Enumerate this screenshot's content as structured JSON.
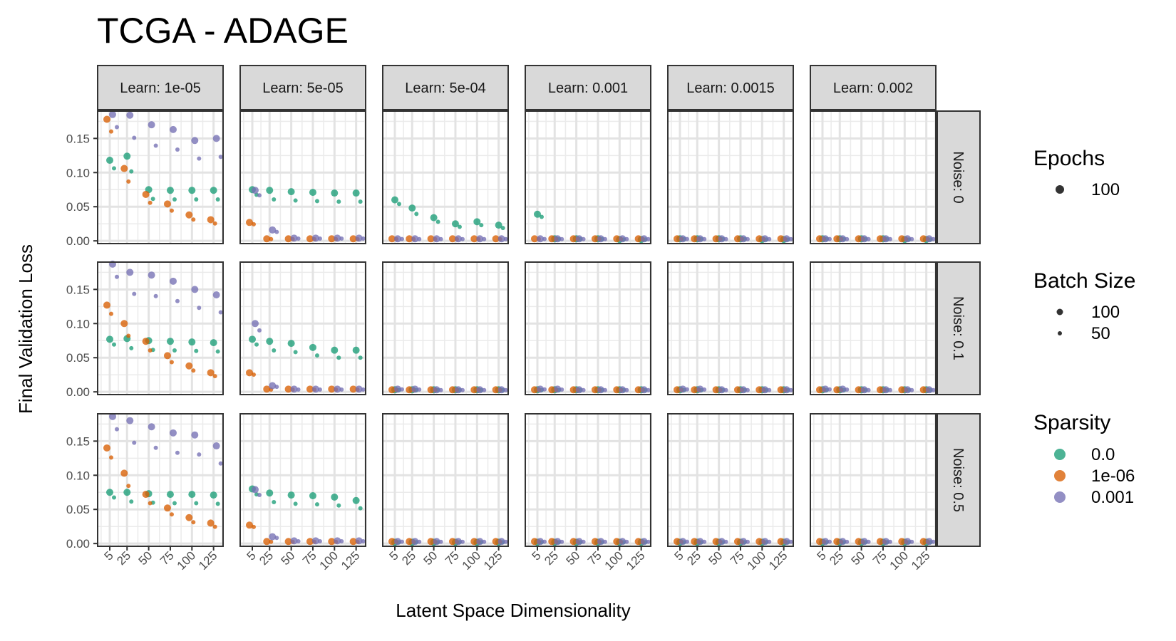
{
  "chart_data": {
    "type": "scatter",
    "title": "TCGA - ADAGE",
    "xlabel": "Latent Space Dimensionality",
    "ylabel": "Final Validation Loss",
    "x_ticks": [
      5,
      25,
      50,
      75,
      100,
      125
    ],
    "y_ticks": [
      "0.00",
      "0.05",
      "0.10",
      "0.15"
    ],
    "ylim": [
      -0.004,
      0.19
    ],
    "grid": true,
    "facet_cols": [
      "Learn: 1e-05",
      "Learn: 5e-05",
      "Learn: 5e-04",
      "Learn: 0.001",
      "Learn: 0.0015",
      "Learn: 0.002"
    ],
    "facet_rows": [
      "Noise: 0",
      "Noise: 0.1",
      "Noise: 0.5"
    ],
    "legend": {
      "placement": "right",
      "epochs": {
        "title": "Epochs",
        "items": [
          "100"
        ]
      },
      "batch_size": {
        "title": "Batch Size",
        "items": [
          "100",
          "50"
        ]
      },
      "sparsity": {
        "title": "Sparsity",
        "items": [
          {
            "label": "0.0",
            "color": "#1b9e77"
          },
          {
            "label": "1e-06",
            "color": "#d95f02"
          },
          {
            "label": "0.001",
            "color": "#7570b3"
          }
        ]
      }
    },
    "series": [
      {
        "name": "0.0",
        "values": [
          [
            [
              0.118,
              0.124,
              0.075,
              0.074,
              0.074,
              0.074
            ],
            [
              0.077,
              0.078,
              0.075,
              0.074,
              0.073,
              0.072
            ],
            [
              0.075,
              0.075,
              0.073,
              0.072,
              0.072,
              0.071
            ]
          ],
          [
            [
              0.075,
              0.074,
              0.072,
              0.071,
              0.07,
              0.07
            ],
            [
              0.077,
              0.074,
              0.071,
              0.065,
              0.061,
              0.061
            ],
            [
              0.08,
              0.074,
              0.071,
              0.07,
              0.068,
              0.063
            ]
          ],
          [
            [
              0.06,
              0.048,
              0.034,
              0.025,
              0.028,
              0.023
            ],
            [
              0.003,
              0.003,
              0.003,
              0.003,
              0.003,
              0.003
            ],
            [
              0.002,
              0.002,
              0.002,
              0.002,
              0.002,
              0.002
            ]
          ],
          [
            [
              0.039,
              0.003,
              0.003,
              0.003,
              0.002,
              0.002
            ],
            [
              0.003,
              0.003,
              0.003,
              0.003,
              0.003,
              0.003
            ],
            [
              0.002,
              0.002,
              0.002,
              0.002,
              0.002,
              0.002
            ]
          ],
          [
            [
              0.003,
              0.003,
              0.003,
              0.003,
              0.002,
              0.002
            ],
            [
              0.003,
              0.003,
              0.003,
              0.003,
              0.003,
              0.003
            ],
            [
              0.002,
              0.002,
              0.002,
              0.002,
              0.002,
              0.002
            ]
          ],
          [
            [
              0.003,
              0.003,
              0.003,
              0.003,
              0.002,
              0.002
            ],
            [
              0.003,
              0.003,
              0.003,
              0.003,
              0.003,
              0.003
            ],
            [
              0.002,
              0.002,
              0.002,
              0.002,
              0.002,
              0.002
            ]
          ]
        ]
      },
      {
        "name": "1e-06",
        "values": [
          [
            [
              0.178,
              0.106,
              0.068,
              0.054,
              0.038,
              0.031
            ],
            [
              0.127,
              0.1,
              0.074,
              0.053,
              0.038,
              0.028
            ],
            [
              0.14,
              0.103,
              0.072,
              0.052,
              0.038,
              0.03
            ]
          ],
          [
            [
              0.027,
              0.003,
              0.003,
              0.003,
              0.003,
              0.003
            ],
            [
              0.028,
              0.004,
              0.004,
              0.004,
              0.004,
              0.004
            ],
            [
              0.027,
              0.003,
              0.003,
              0.003,
              0.003,
              0.003
            ]
          ],
          [
            [
              0.003,
              0.003,
              0.003,
              0.003,
              0.003,
              0.003
            ],
            [
              0.003,
              0.003,
              0.003,
              0.003,
              0.003,
              0.003
            ],
            [
              0.003,
              0.003,
              0.003,
              0.003,
              0.003,
              0.003
            ]
          ],
          [
            [
              0.003,
              0.003,
              0.003,
              0.003,
              0.003,
              0.003
            ],
            [
              0.003,
              0.003,
              0.003,
              0.003,
              0.003,
              0.003
            ],
            [
              0.003,
              0.003,
              0.003,
              0.003,
              0.003,
              0.003
            ]
          ],
          [
            [
              0.003,
              0.003,
              0.003,
              0.003,
              0.003,
              0.003
            ],
            [
              0.003,
              0.003,
              0.003,
              0.003,
              0.003,
              0.003
            ],
            [
              0.003,
              0.003,
              0.003,
              0.003,
              0.003,
              0.003
            ]
          ],
          [
            [
              0.003,
              0.003,
              0.003,
              0.003,
              0.003,
              0.003
            ],
            [
              0.003,
              0.003,
              0.003,
              0.003,
              0.003,
              0.003
            ],
            [
              0.003,
              0.003,
              0.003,
              0.003,
              0.003,
              0.003
            ]
          ]
        ]
      },
      {
        "name": "0.001",
        "values": [
          [
            [
              0.185,
              0.184,
              0.17,
              0.163,
              0.147,
              0.15
            ],
            [
              0.187,
              0.175,
              0.171,
              0.162,
              0.15,
              0.142
            ],
            [
              0.186,
              0.18,
              0.171,
              0.162,
              0.159,
              0.143
            ]
          ],
          [
            [
              0.074,
              0.016,
              0.004,
              0.004,
              0.004,
              0.004
            ],
            [
              0.1,
              0.009,
              0.004,
              0.004,
              0.004,
              0.004
            ],
            [
              0.079,
              0.01,
              0.004,
              0.004,
              0.004,
              0.004
            ]
          ],
          [
            [
              0.003,
              0.003,
              0.003,
              0.003,
              0.003,
              0.003
            ],
            [
              0.004,
              0.004,
              0.003,
              0.003,
              0.003,
              0.003
            ],
            [
              0.003,
              0.003,
              0.003,
              0.003,
              0.003,
              0.003
            ]
          ],
          [
            [
              0.003,
              0.003,
              0.003,
              0.003,
              0.003,
              0.003
            ],
            [
              0.004,
              0.004,
              0.003,
              0.003,
              0.003,
              0.003
            ],
            [
              0.003,
              0.003,
              0.003,
              0.003,
              0.003,
              0.003
            ]
          ],
          [
            [
              0.003,
              0.003,
              0.003,
              0.003,
              0.003,
              0.003
            ],
            [
              0.004,
              0.004,
              0.003,
              0.003,
              0.003,
              0.003
            ],
            [
              0.003,
              0.003,
              0.003,
              0.003,
              0.003,
              0.003
            ]
          ],
          [
            [
              0.003,
              0.003,
              0.003,
              0.003,
              0.003,
              0.003
            ],
            [
              0.004,
              0.004,
              0.003,
              0.003,
              0.003,
              0.003
            ],
            [
              0.003,
              0.003,
              0.003,
              0.003,
              0.003,
              0.003
            ]
          ]
        ]
      }
    ]
  }
}
